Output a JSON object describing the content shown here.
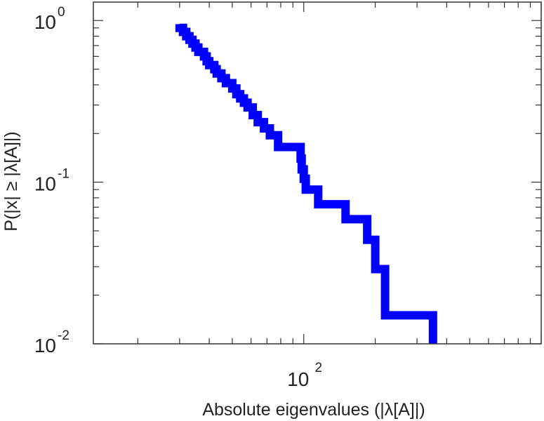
{
  "chart_data": {
    "type": "line",
    "subtype": "step-ccdf",
    "title": "",
    "xlabel": "Absolute eigenvalues (|λ[A]|)",
    "ylabel": "P(|x| ≥ |λ[A]|)",
    "x_scale": "log",
    "y_scale": "log",
    "xlim": [
      13,
      1000
    ],
    "ylim": [
      0.01,
      1.3
    ],
    "grid": false,
    "legend": "none",
    "x_ticks": [
      {
        "base": "10",
        "exp": "2",
        "value": 100
      }
    ],
    "y_ticks": [
      {
        "base": "10",
        "exp": "0",
        "value": 1
      },
      {
        "base": "10",
        "exp": "-1",
        "value": 0.1
      },
      {
        "base": "10",
        "exp": "-2",
        "value": 0.01
      }
    ],
    "series": [
      {
        "color": "#0000ff",
        "x": [
          30,
          30,
          31,
          31,
          32,
          32,
          33,
          33,
          34,
          34,
          35,
          35,
          36,
          36,
          38,
          38,
          39,
          39,
          40,
          40,
          42,
          42,
          43,
          43,
          45,
          45,
          47,
          47,
          50,
          50,
          52,
          52,
          54,
          54,
          56,
          56,
          58,
          58,
          61,
          61,
          64,
          64,
          68,
          68,
          72,
          72,
          78,
          78,
          97,
          97,
          98,
          98,
          100,
          100,
          102,
          102,
          115,
          115,
          150,
          150,
          185,
          185,
          200,
          200,
          220,
          220,
          350,
          350
        ],
        "y": [
          0.95,
          0.9,
          0.9,
          0.85,
          0.85,
          0.8,
          0.8,
          0.76,
          0.76,
          0.72,
          0.72,
          0.68,
          0.68,
          0.64,
          0.64,
          0.6,
          0.6,
          0.56,
          0.56,
          0.53,
          0.53,
          0.5,
          0.5,
          0.47,
          0.47,
          0.44,
          0.44,
          0.41,
          0.41,
          0.38,
          0.38,
          0.35,
          0.35,
          0.33,
          0.33,
          0.31,
          0.31,
          0.29,
          0.29,
          0.26,
          0.26,
          0.235,
          0.235,
          0.215,
          0.215,
          0.195,
          0.195,
          0.165,
          0.165,
          0.14,
          0.14,
          0.12,
          0.12,
          0.105,
          0.105,
          0.09,
          0.09,
          0.073,
          0.073,
          0.059,
          0.059,
          0.044,
          0.044,
          0.029,
          0.029,
          0.015,
          0.015,
          0.01
        ]
      }
    ]
  }
}
